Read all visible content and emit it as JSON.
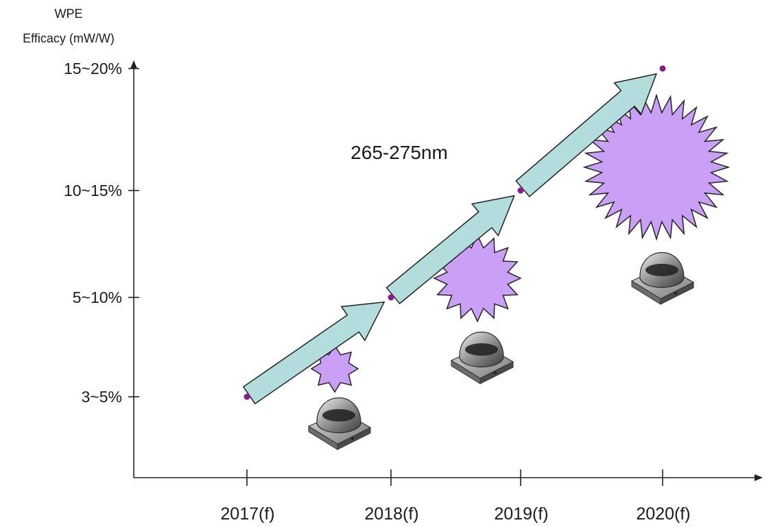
{
  "chart_data": {
    "type": "line",
    "title": "",
    "ylabel_line1": "WPE",
    "ylabel_line2": "Efficacy (mW/W)",
    "xlabel": "",
    "categories": [
      "2017(f)",
      "2018(f)",
      "2019(f)",
      "2020(f)"
    ],
    "y_tick_labels": [
      "3~5%",
      "5~10%",
      "10~15%",
      "15~20%"
    ],
    "ylim": [
      0,
      20
    ],
    "y_ticks": [
      3,
      5,
      10,
      15
    ],
    "series": [
      {
        "x": [
          "2017(f)",
          "2018(f)",
          "2019(f)",
          "2020(f)"
        ],
        "y": [
          3,
          5,
          10,
          15
        ],
        "color": "#b3dcdc"
      }
    ],
    "annotation": "265-275nm",
    "grid": false,
    "legend": "none",
    "colors": {
      "arrow_fill": "#b3dcdc",
      "arrow_stroke": "#1f1f1f",
      "marker": "#8b1a8f",
      "burst_fill": "#c9a0f5",
      "burst_stroke": "#222222",
      "axis": "#222222"
    },
    "icons": [
      "uv-led-package-icon",
      "uv-burst-icon"
    ]
  }
}
